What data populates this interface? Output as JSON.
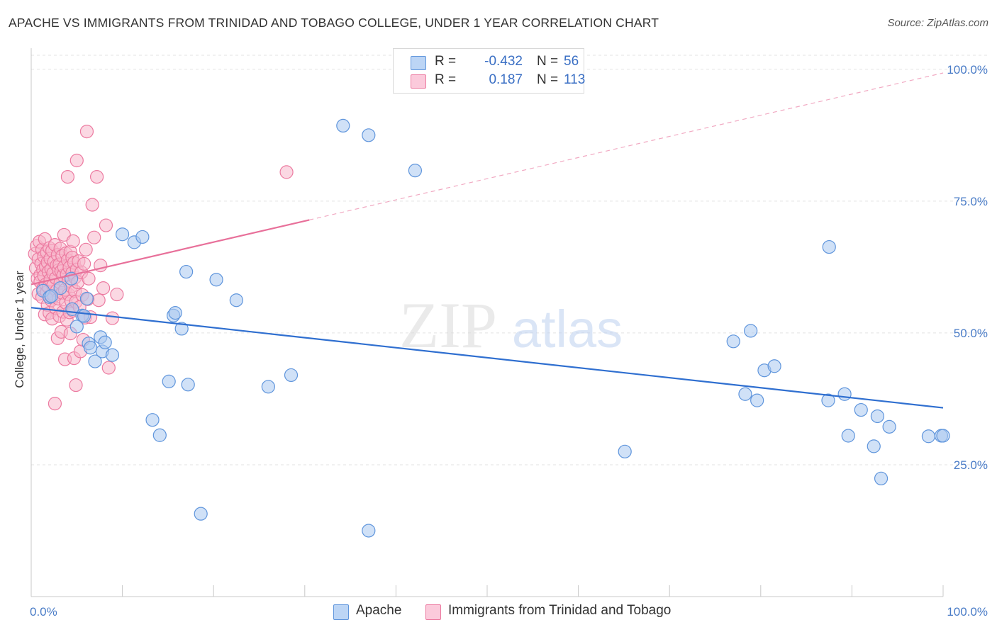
{
  "title": "APACHE VS IMMIGRANTS FROM TRINIDAD AND TOBAGO COLLEGE, UNDER 1 YEAR CORRELATION CHART",
  "source": "Source: ZipAtlas.com",
  "watermark": {
    "zip": "ZIP",
    "atlas": "atlas"
  },
  "legend": {
    "r_label": "R =",
    "n_label": "N =",
    "rows": [
      {
        "r": "-0.432",
        "n": "56"
      },
      {
        "r": "0.187",
        "n": "113"
      }
    ]
  },
  "colors": {
    "apache_fill": "#a9c8f0",
    "apache_stroke": "#5f95dc",
    "apache_line": "#2f6fd0",
    "tt_fill": "#f8b8cc",
    "tt_stroke": "#ec7aa0",
    "tt_line": "#e8709a",
    "axis_text": "#4a7cc7",
    "grid": "#e3e3e3"
  },
  "chart_data": {
    "type": "scatter",
    "xlabel": "",
    "ylabel": "College, Under 1 year",
    "xlim": [
      0,
      100
    ],
    "ylim": [
      0,
      104
    ],
    "x_tick_labels": [
      "0.0%",
      "100.0%"
    ],
    "y_ticks": [
      25,
      50,
      75,
      100
    ],
    "y_tick_labels": [
      "25.0%",
      "50.0%",
      "75.0%",
      "100.0%"
    ],
    "grid": true,
    "legend_position": "top-center",
    "series": [
      {
        "name": "Apache",
        "trend": {
          "x0": 0,
          "y0": 54.8,
          "x1": 100,
          "y1": 35.8,
          "solid_to": 100
        },
        "points": [
          [
            1.3,
            58.0
          ],
          [
            2.0,
            56.8
          ],
          [
            3.2,
            58.5
          ],
          [
            4.4,
            60.3
          ],
          [
            4.5,
            54.5
          ],
          [
            5.6,
            53.3
          ],
          [
            5.8,
            53.2
          ],
          [
            6.1,
            56.5
          ],
          [
            6.3,
            48.0
          ],
          [
            6.5,
            47.2
          ],
          [
            7.0,
            44.6
          ],
          [
            7.6,
            49.2
          ],
          [
            7.8,
            46.5
          ],
          [
            8.1,
            48.2
          ],
          [
            8.9,
            45.8
          ],
          [
            10.0,
            68.7
          ],
          [
            11.3,
            67.2
          ],
          [
            12.2,
            68.2
          ],
          [
            13.3,
            33.5
          ],
          [
            14.1,
            30.6
          ],
          [
            15.1,
            40.8
          ],
          [
            15.6,
            53.3
          ],
          [
            15.8,
            53.8
          ],
          [
            16.5,
            50.8
          ],
          [
            17.0,
            61.6
          ],
          [
            17.2,
            40.2
          ],
          [
            18.6,
            15.7
          ],
          [
            20.3,
            60.1
          ],
          [
            22.5,
            56.2
          ],
          [
            26.0,
            39.8
          ],
          [
            28.5,
            42.0
          ],
          [
            34.2,
            89.3
          ],
          [
            37.0,
            87.5
          ],
          [
            37.0,
            12.5
          ],
          [
            42.1,
            80.8
          ],
          [
            65.1,
            27.5
          ],
          [
            77.0,
            48.4
          ],
          [
            78.3,
            38.4
          ],
          [
            78.9,
            50.4
          ],
          [
            79.6,
            37.2
          ],
          [
            80.4,
            42.9
          ],
          [
            81.5,
            43.7
          ],
          [
            87.4,
            37.2
          ],
          [
            87.5,
            66.3
          ],
          [
            89.2,
            38.4
          ],
          [
            89.6,
            30.5
          ],
          [
            91.0,
            35.4
          ],
          [
            92.4,
            28.5
          ],
          [
            92.8,
            34.2
          ],
          [
            93.2,
            22.4
          ],
          [
            94.1,
            32.2
          ],
          [
            98.4,
            30.4
          ],
          [
            99.8,
            30.5
          ],
          [
            100.0,
            30.5
          ],
          [
            2.2,
            57.0
          ],
          [
            5.0,
            51.2
          ]
        ]
      },
      {
        "name": "Immigrants from Trinidad and Tobago",
        "trend": {
          "x0": 0,
          "y0": 59.2,
          "x1": 100,
          "y1": 99.3,
          "solid_to": 30.5
        },
        "points": [
          [
            0.4,
            65.0
          ],
          [
            0.5,
            62.3
          ],
          [
            0.6,
            66.5
          ],
          [
            0.7,
            60.3
          ],
          [
            0.8,
            64.0
          ],
          [
            0.8,
            57.4
          ],
          [
            0.9,
            67.3
          ],
          [
            1.0,
            61.0
          ],
          [
            1.0,
            59.7
          ],
          [
            1.1,
            63.1
          ],
          [
            1.2,
            65.8
          ],
          [
            1.2,
            56.8
          ],
          [
            1.3,
            62.0
          ],
          [
            1.3,
            58.4
          ],
          [
            1.4,
            64.5
          ],
          [
            1.4,
            60.8
          ],
          [
            1.5,
            67.8
          ],
          [
            1.5,
            53.5
          ],
          [
            1.6,
            62.6
          ],
          [
            1.6,
            59.2
          ],
          [
            1.7,
            65.3
          ],
          [
            1.7,
            57.7
          ],
          [
            1.8,
            63.4
          ],
          [
            1.8,
            55.3
          ],
          [
            1.9,
            61.6
          ],
          [
            1.9,
            58.7
          ],
          [
            2.0,
            66.1
          ],
          [
            2.0,
            53.8
          ],
          [
            2.1,
            64.1
          ],
          [
            2.1,
            60.1
          ],
          [
            2.2,
            62.1
          ],
          [
            2.2,
            56.2
          ],
          [
            2.3,
            65.6
          ],
          [
            2.3,
            52.7
          ],
          [
            2.4,
            59.0
          ],
          [
            2.4,
            61.3
          ],
          [
            2.5,
            63.5
          ],
          [
            2.5,
            57.0
          ],
          [
            2.6,
            36.6
          ],
          [
            2.6,
            66.7
          ],
          [
            2.7,
            60.4
          ],
          [
            2.7,
            54.7
          ],
          [
            2.8,
            62.8
          ],
          [
            2.8,
            58.0
          ],
          [
            2.9,
            64.8
          ],
          [
            2.9,
            49.0
          ],
          [
            3.0,
            61.9
          ],
          [
            3.0,
            56.5
          ],
          [
            3.1,
            63.0
          ],
          [
            3.1,
            53.2
          ],
          [
            3.2,
            59.5
          ],
          [
            3.2,
            66.0
          ],
          [
            3.3,
            50.2
          ],
          [
            3.3,
            61.7
          ],
          [
            3.4,
            57.6
          ],
          [
            3.4,
            64.6
          ],
          [
            3.5,
            54.0
          ],
          [
            3.5,
            60.9
          ],
          [
            3.6,
            68.6
          ],
          [
            3.6,
            62.5
          ],
          [
            3.7,
            58.2
          ],
          [
            3.7,
            45.0
          ],
          [
            3.8,
            65.1
          ],
          [
            3.8,
            55.7
          ],
          [
            3.9,
            61.1
          ],
          [
            3.9,
            52.5
          ],
          [
            4.0,
            79.6
          ],
          [
            4.0,
            63.8
          ],
          [
            4.1,
            57.3
          ],
          [
            4.1,
            59.9
          ],
          [
            4.2,
            53.9
          ],
          [
            4.2,
            62.4
          ],
          [
            4.3,
            65.4
          ],
          [
            4.3,
            49.9
          ],
          [
            4.4,
            58.8
          ],
          [
            4.4,
            56.0
          ],
          [
            4.5,
            61.4
          ],
          [
            4.5,
            64.3
          ],
          [
            4.6,
            67.4
          ],
          [
            4.6,
            54.2
          ],
          [
            4.7,
            63.3
          ],
          [
            4.7,
            45.2
          ],
          [
            4.8,
            60.5
          ],
          [
            4.8,
            57.9
          ],
          [
            4.9,
            40.1
          ],
          [
            4.9,
            55.9
          ],
          [
            5.0,
            82.7
          ],
          [
            5.0,
            62.0
          ],
          [
            5.1,
            59.6
          ],
          [
            5.2,
            63.6
          ],
          [
            5.3,
            54.9
          ],
          [
            5.4,
            46.5
          ],
          [
            5.5,
            61.5
          ],
          [
            5.6,
            57.2
          ],
          [
            5.7,
            48.7
          ],
          [
            5.8,
            63.1
          ],
          [
            5.9,
            52.9
          ],
          [
            6.0,
            65.8
          ],
          [
            6.1,
            88.2
          ],
          [
            6.2,
            56.4
          ],
          [
            6.3,
            60.3
          ],
          [
            6.5,
            53.0
          ],
          [
            6.7,
            74.3
          ],
          [
            6.9,
            68.1
          ],
          [
            7.2,
            79.6
          ],
          [
            7.4,
            56.2
          ],
          [
            7.6,
            62.8
          ],
          [
            7.9,
            58.5
          ],
          [
            8.2,
            70.4
          ],
          [
            8.5,
            43.4
          ],
          [
            8.9,
            52.8
          ],
          [
            28.0,
            80.5
          ],
          [
            9.4,
            57.3
          ]
        ]
      }
    ]
  }
}
